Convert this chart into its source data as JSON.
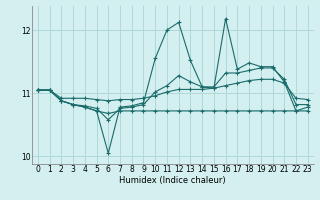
{
  "xlabel": "Humidex (Indice chaleur)",
  "bg_color": "#d4efef",
  "line_color": "#1a6b6b",
  "grid_color": "#b0d8d8",
  "xlim": [
    -0.5,
    23.5
  ],
  "ylim": [
    9.88,
    12.38
  ],
  "xticks": [
    0,
    1,
    2,
    3,
    4,
    5,
    6,
    7,
    8,
    9,
    10,
    11,
    12,
    13,
    14,
    15,
    16,
    17,
    18,
    19,
    20,
    21,
    22,
    23
  ],
  "yticks": [
    10,
    11,
    12
  ],
  "x": [
    0,
    1,
    2,
    3,
    4,
    5,
    6,
    7,
    8,
    9,
    10,
    11,
    12,
    13,
    14,
    15,
    16,
    17,
    18,
    19,
    20,
    21,
    22,
    23
  ],
  "line1": [
    11.05,
    11.05,
    10.88,
    10.82,
    10.78,
    10.72,
    10.05,
    10.78,
    10.8,
    10.85,
    11.55,
    12.0,
    12.12,
    11.52,
    11.1,
    11.08,
    12.18,
    11.38,
    11.48,
    11.42,
    11.42,
    11.18,
    10.72,
    10.78
  ],
  "line2": [
    11.05,
    11.05,
    10.88,
    10.82,
    10.8,
    10.76,
    10.58,
    10.76,
    10.78,
    10.82,
    11.02,
    11.12,
    11.28,
    11.18,
    11.1,
    11.1,
    11.32,
    11.32,
    11.36,
    11.4,
    11.4,
    11.22,
    10.82,
    10.82
  ],
  "line3": [
    11.05,
    11.05,
    10.92,
    10.92,
    10.92,
    10.9,
    10.88,
    10.9,
    10.9,
    10.92,
    10.96,
    11.02,
    11.06,
    11.06,
    11.06,
    11.08,
    11.12,
    11.16,
    11.2,
    11.22,
    11.22,
    11.16,
    10.92,
    10.9
  ],
  "line4": [
    11.05,
    11.05,
    10.88,
    10.82,
    10.78,
    10.72,
    10.68,
    10.72,
    10.72,
    10.72,
    10.72,
    10.72,
    10.72,
    10.72,
    10.72,
    10.72,
    10.72,
    10.72,
    10.72,
    10.72,
    10.72,
    10.72,
    10.72,
    10.72
  ]
}
